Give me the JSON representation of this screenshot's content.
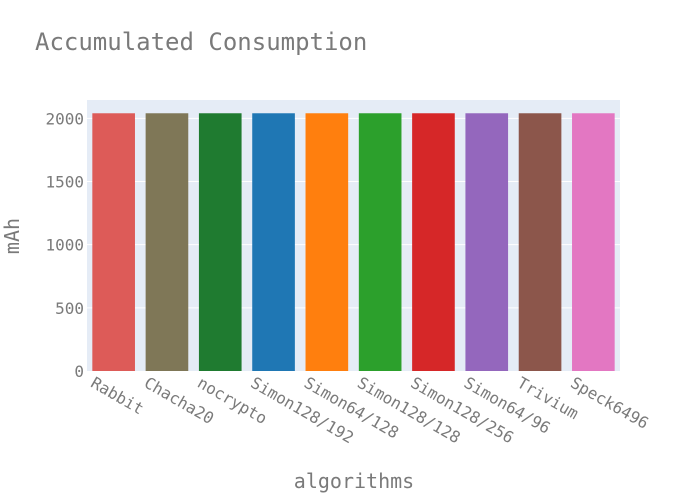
{
  "chart_data": {
    "type": "bar",
    "title": "Accumulated Consumption",
    "xlabel": "algorithms",
    "ylabel": "mAh",
    "categories": [
      "Rabbit",
      "Chacha20",
      "nocrypto",
      "Simon128/192",
      "Simon64/128",
      "Simon128/128",
      "Simon128/256",
      "Simon64/96",
      "Trivium",
      "Speck6496"
    ],
    "values": [
      2040,
      2040,
      2040,
      2040,
      2040,
      2040,
      2040,
      2040,
      2040,
      2040
    ],
    "colors": [
      "#dd5b58",
      "#7f7757",
      "#1f7b30",
      "#1f77b4",
      "#ff7f0e",
      "#2ca02c",
      "#d62728",
      "#9467bd",
      "#8c564b",
      "#e377c2"
    ],
    "ylim": [
      0,
      2145
    ],
    "yticks": [
      0,
      500,
      1000,
      1500,
      2000
    ],
    "grid": true,
    "background_color": "#e5ecf6"
  }
}
